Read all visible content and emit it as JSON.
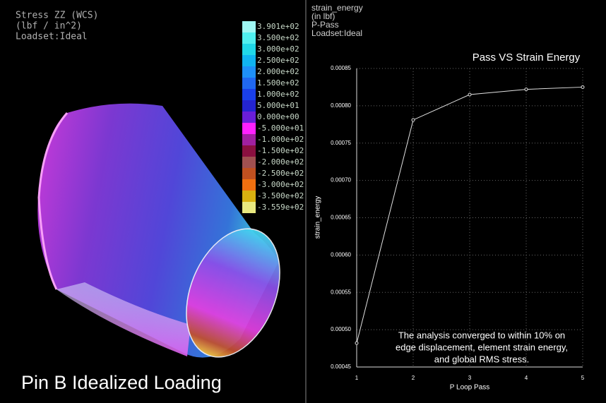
{
  "left_panel": {
    "result_lines": [
      "Stress ZZ (WCS)",
      "(lbf / in^2)",
      "Loadset:Ideal"
    ],
    "caption": "Pin B Idealized Loading",
    "colorbar": [
      {
        "label": "3.901e+02",
        "color": "#9ff8f4"
      },
      {
        "label": "3.500e+02",
        "color": "#50f0f0"
      },
      {
        "label": "3.000e+02",
        "color": "#20d8e8"
      },
      {
        "label": "2.500e+02",
        "color": "#10b4f0"
      },
      {
        "label": "2.000e+02",
        "color": "#1e90f8"
      },
      {
        "label": "1.500e+02",
        "color": "#2068f0"
      },
      {
        "label": "1.000e+02",
        "color": "#1a40e8"
      },
      {
        "label": "5.000e+01",
        "color": "#2424d0"
      },
      {
        "label": "0.000e+00",
        "color": "#6a1ed8"
      },
      {
        "label": "-5.000e+01",
        "color": "#ff20ff"
      },
      {
        "label": "-1.000e+02",
        "color": "#a020a0"
      },
      {
        "label": "-1.500e+02",
        "color": "#8a1040"
      },
      {
        "label": "-2.000e+02",
        "color": "#a05050"
      },
      {
        "label": "-2.500e+02",
        "color": "#c05020"
      },
      {
        "label": "-3.000e+02",
        "color": "#f07010"
      },
      {
        "label": "-3.500e+02",
        "color": "#d8b010"
      },
      {
        "label": "-3.559e+02",
        "color": "#e8e880"
      }
    ]
  },
  "right_header": [
    "strain_energy",
    "(in lbf)",
    "P-Pass",
    "Loadset:Ideal"
  ],
  "chart_data": {
    "type": "line",
    "title": "Pass VS Strain Energy",
    "x_label": "P Loop Pass",
    "y_label": "strain_energy",
    "x": [
      1,
      2,
      3,
      4,
      5
    ],
    "values": [
      0.000482,
      0.000781,
      0.000815,
      0.000822,
      0.000825
    ],
    "color": "#e0e0e0",
    "xlim": [
      1,
      5
    ],
    "xticks": [
      1,
      2,
      3,
      4,
      5
    ],
    "ylim": [
      0.00045,
      0.00085
    ],
    "yticks": [
      0.00045,
      {
        "value": 0.0005,
        "label": "0.00050"
      },
      0.00055,
      {
        "value": 0.0006,
        "label": "0.00060"
      },
      0.00065,
      {
        "value": 0.0007,
        "label": "0.00070"
      },
      0.00075,
      {
        "value": 0.0008,
        "label": "0.00080"
      },
      0.00085
    ],
    "grid": true,
    "annotation": [
      "The analysis converged to within 10% on",
      "edge displacement, element strain energy,",
      "and global RMS stress."
    ]
  }
}
